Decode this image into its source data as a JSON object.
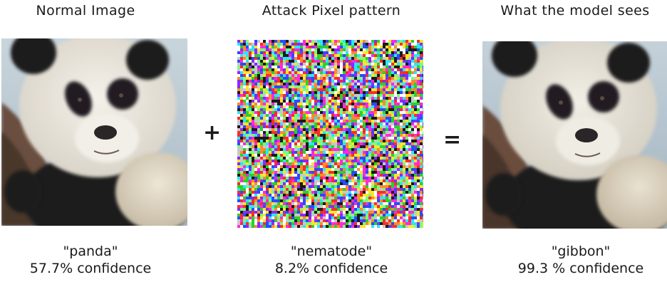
{
  "panels": [
    {
      "title": "Normal Image",
      "label": "\"panda\"",
      "confidence": "57.7% confidence"
    },
    {
      "title": "Attack Pixel pattern",
      "label": "\"nematode\"",
      "confidence": "8.2% confidence"
    },
    {
      "title": "What the model sees",
      "label": "\"gibbon\"",
      "confidence": "99.3 % confidence"
    }
  ],
  "operators": {
    "plus": "+",
    "equals": "="
  }
}
